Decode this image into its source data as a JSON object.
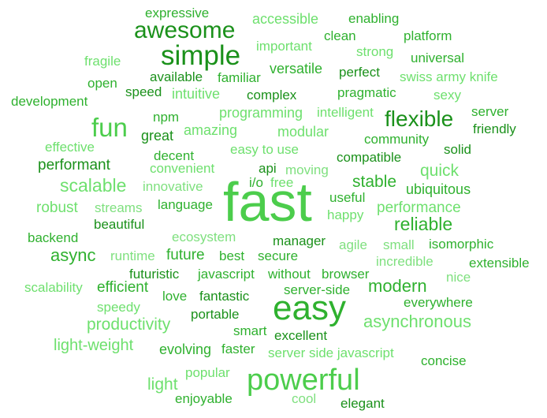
{
  "palette": {
    "bright": "#4ccd4c",
    "medium": "#2fb12f",
    "dark": "#1b911b",
    "light": "#6ee06e",
    "pale": "#7fe07f"
  },
  "words": [
    {
      "text": "expressive",
      "shade": 2
    },
    {
      "text": "accessible",
      "shade": 4
    },
    {
      "text": "enabling",
      "shade": 2
    },
    {
      "text": "awesome",
      "shade": 3
    },
    {
      "text": "clean",
      "shade": 2
    },
    {
      "text": "platform",
      "shade": 2
    },
    {
      "text": "important",
      "shade": 4
    },
    {
      "text": "strong",
      "shade": 4
    },
    {
      "text": "simple",
      "shade": 3
    },
    {
      "text": "fragile",
      "shade": 4
    },
    {
      "text": "universal",
      "shade": 2
    },
    {
      "text": "versatile",
      "shade": 2
    },
    {
      "text": "available",
      "shade": 3
    },
    {
      "text": "familiar",
      "shade": 2
    },
    {
      "text": "perfect",
      "shade": 3
    },
    {
      "text": "swiss army knife",
      "shade": 4
    },
    {
      "text": "open",
      "shade": 2
    },
    {
      "text": "speed",
      "shade": 3
    },
    {
      "text": "intuitive",
      "shade": 4
    },
    {
      "text": "complex",
      "shade": 3
    },
    {
      "text": "pragmatic",
      "shade": 2
    },
    {
      "text": "sexy",
      "shade": 4
    },
    {
      "text": "development",
      "shade": 2
    },
    {
      "text": "programming",
      "shade": 4
    },
    {
      "text": "intelligent",
      "shade": 4
    },
    {
      "text": "server",
      "shade": 2
    },
    {
      "text": "npm",
      "shade": 2
    },
    {
      "text": "flexible",
      "shade": 3
    },
    {
      "text": "fun",
      "shade": 1
    },
    {
      "text": "amazing",
      "shade": 4
    },
    {
      "text": "modular",
      "shade": 4
    },
    {
      "text": "friendly",
      "shade": 3
    },
    {
      "text": "great",
      "shade": 3
    },
    {
      "text": "community",
      "shade": 2
    },
    {
      "text": "effective",
      "shade": 4
    },
    {
      "text": "easy to use",
      "shade": 4
    },
    {
      "text": "solid",
      "shade": 3
    },
    {
      "text": "decent",
      "shade": 2
    },
    {
      "text": "compatible",
      "shade": 3
    },
    {
      "text": "performant",
      "shade": 3
    },
    {
      "text": "convenient",
      "shade": 4
    },
    {
      "text": "api",
      "shade": 3
    },
    {
      "text": "moving",
      "shade": 5
    },
    {
      "text": "quick",
      "shade": 4
    },
    {
      "text": "i/o",
      "shade": 2
    },
    {
      "text": "free",
      "shade": 4
    },
    {
      "text": "stable",
      "shade": 2
    },
    {
      "text": "scalable",
      "shade": 4
    },
    {
      "text": "innovative",
      "shade": 5
    },
    {
      "text": "ubiquitous",
      "shade": 2
    },
    {
      "text": "fast",
      "shade": 1
    },
    {
      "text": "useful",
      "shade": 2
    },
    {
      "text": "robust",
      "shade": 4
    },
    {
      "text": "streams",
      "shade": 5
    },
    {
      "text": "language",
      "shade": 2
    },
    {
      "text": "happy",
      "shade": 4
    },
    {
      "text": "performance",
      "shade": 4
    },
    {
      "text": "reliable",
      "shade": 2
    },
    {
      "text": "beautiful",
      "shade": 3
    },
    {
      "text": "backend",
      "shade": 2
    },
    {
      "text": "ecosystem",
      "shade": 5
    },
    {
      "text": "manager",
      "shade": 3
    },
    {
      "text": "agile",
      "shade": 5
    },
    {
      "text": "small",
      "shade": 5
    },
    {
      "text": "isomorphic",
      "shade": 2
    },
    {
      "text": "async",
      "shade": 2
    },
    {
      "text": "runtime",
      "shade": 5
    },
    {
      "text": "future",
      "shade": 2
    },
    {
      "text": "best",
      "shade": 2
    },
    {
      "text": "secure",
      "shade": 2
    },
    {
      "text": "incredible",
      "shade": 5
    },
    {
      "text": "extensible",
      "shade": 2
    },
    {
      "text": "futuristic",
      "shade": 3
    },
    {
      "text": "javascript",
      "shade": 2
    },
    {
      "text": "without",
      "shade": 2
    },
    {
      "text": "browser",
      "shade": 2
    },
    {
      "text": "nice",
      "shade": 5
    },
    {
      "text": "scalability",
      "shade": 4
    },
    {
      "text": "efficient",
      "shade": 2
    },
    {
      "text": "modern",
      "shade": 2
    },
    {
      "text": "server-side",
      "shade": 2
    },
    {
      "text": "love",
      "shade": 2
    },
    {
      "text": "fantastic",
      "shade": 3
    },
    {
      "text": "easy",
      "shade": 2
    },
    {
      "text": "everywhere",
      "shade": 2
    },
    {
      "text": "speedy",
      "shade": 4
    },
    {
      "text": "productivity",
      "shade": 4
    },
    {
      "text": "portable",
      "shade": 3
    },
    {
      "text": "asynchronous",
      "shade": 4
    },
    {
      "text": "smart",
      "shade": 2
    },
    {
      "text": "excellent",
      "shade": 3
    },
    {
      "text": "light-weight",
      "shade": 4
    },
    {
      "text": "evolving",
      "shade": 2
    },
    {
      "text": "faster",
      "shade": 2
    },
    {
      "text": "server side javascript",
      "shade": 4
    },
    {
      "text": "concise",
      "shade": 2
    },
    {
      "text": "popular",
      "shade": 4
    },
    {
      "text": "powerful",
      "shade": 1
    },
    {
      "text": "light",
      "shade": 4
    },
    {
      "text": "enjoyable",
      "shade": 2
    },
    {
      "text": "cool",
      "shade": 5
    },
    {
      "text": "elegant",
      "shade": 3
    }
  ]
}
